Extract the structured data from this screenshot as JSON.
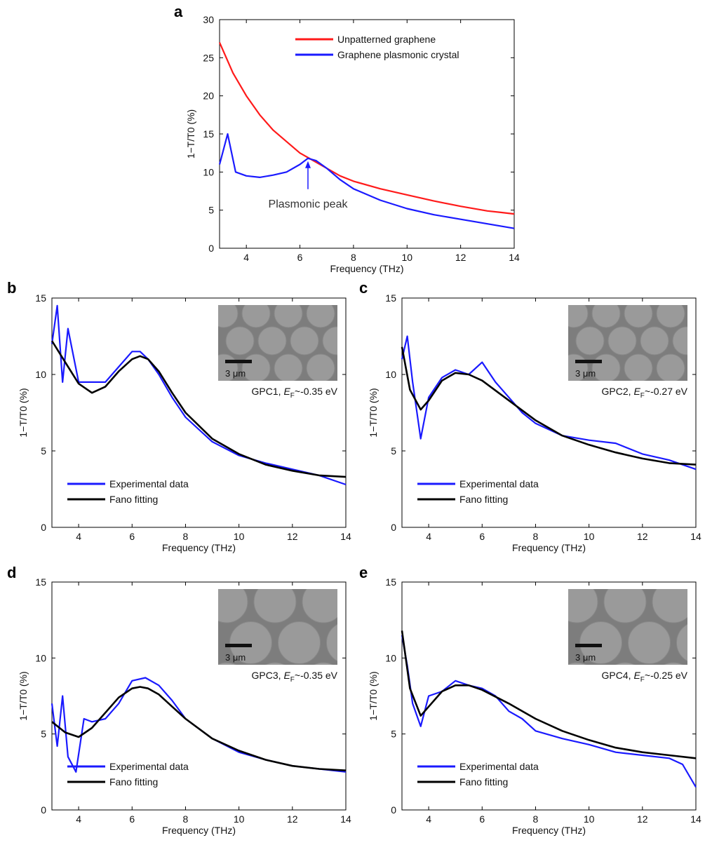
{
  "colors": {
    "red": "#ff1a1a",
    "blue": "#1a1aff",
    "black": "#000000"
  },
  "chart_data": [
    {
      "panel": "a",
      "type": "line",
      "xlabel": "Frequency (THz)",
      "ylabel": "1−T/T0 (%)",
      "xlim": [
        3,
        14
      ],
      "ylim": [
        0,
        30
      ],
      "xticks": [
        "4",
        "6",
        "8",
        "10",
        "12",
        "14"
      ],
      "yticks": [
        "0",
        "5",
        "10",
        "15",
        "20",
        "25",
        "30"
      ],
      "legend_position": "top-right",
      "annotation": {
        "text": "Plasmonic peak",
        "x": 6.3,
        "y": 11.8
      },
      "series": [
        {
          "name": "Unpatterned graphene",
          "color": "red",
          "x": [
            3.0,
            3.5,
            4.0,
            4.5,
            5.0,
            5.5,
            6.0,
            6.5,
            7.0,
            7.5,
            8.0,
            9.0,
            10.0,
            11.0,
            12.0,
            13.0,
            13.5,
            14.0
          ],
          "y": [
            27,
            23,
            20,
            17.5,
            15.5,
            14,
            12.5,
            11.5,
            10.5,
            9.5,
            8.8,
            7.8,
            7.0,
            6.2,
            5.5,
            4.9,
            4.7,
            4.5
          ]
        },
        {
          "name": "Graphene plasmonic crystal",
          "color": "blue",
          "x": [
            3.0,
            3.3,
            3.6,
            4.0,
            4.5,
            5.0,
            5.5,
            6.0,
            6.3,
            6.6,
            7.0,
            7.5,
            8.0,
            9.0,
            10.0,
            11.0,
            12.0,
            13.0,
            14.0
          ],
          "y": [
            11,
            15,
            10,
            9.5,
            9.3,
            9.6,
            10,
            11,
            11.8,
            11.5,
            10.5,
            9.0,
            7.8,
            6.3,
            5.2,
            4.4,
            3.8,
            3.2,
            2.6
          ]
        }
      ]
    },
    {
      "panel": "b",
      "type": "line",
      "xlabel": "Frequency (THz)",
      "ylabel": "1−T/T0 (%)",
      "xlim": [
        3,
        14
      ],
      "ylim": [
        0,
        15
      ],
      "xticks": [
        "4",
        "6",
        "8",
        "10",
        "12",
        "14"
      ],
      "yticks": [
        "0",
        "5",
        "10",
        "15"
      ],
      "legend_position": "bottom-left",
      "inset": {
        "sample": "GPC1",
        "ef": "~-0.35 eV",
        "scale": "3 μm"
      },
      "series": [
        {
          "name": "Experimental data",
          "color": "blue",
          "x": [
            3.0,
            3.2,
            3.4,
            3.6,
            4.0,
            4.5,
            5.0,
            5.5,
            6.0,
            6.3,
            6.6,
            7.0,
            7.5,
            8.0,
            9.0,
            10.0,
            11.0,
            12.0,
            13.0,
            14.0
          ],
          "y": [
            12,
            14.5,
            9.5,
            13,
            9.5,
            9.5,
            9.5,
            10.5,
            11.5,
            11.5,
            11,
            10,
            8.5,
            7.2,
            5.6,
            4.7,
            4.2,
            3.8,
            3.4,
            2.8
          ]
        },
        {
          "name": "Fano fitting",
          "color": "black",
          "x": [
            3.0,
            3.5,
            4.0,
            4.5,
            5.0,
            5.5,
            6.0,
            6.3,
            6.6,
            7.0,
            7.5,
            8.0,
            9.0,
            10.0,
            11.0,
            12.0,
            13.0,
            14.0
          ],
          "y": [
            12.2,
            10.8,
            9.4,
            8.8,
            9.2,
            10.2,
            11.0,
            11.2,
            11.0,
            10.2,
            8.8,
            7.5,
            5.8,
            4.8,
            4.1,
            3.7,
            3.4,
            3.3
          ]
        }
      ]
    },
    {
      "panel": "c",
      "type": "line",
      "xlabel": "Frequency (THz)",
      "ylabel": "1−T/T0 (%)",
      "xlim": [
        3,
        14
      ],
      "ylim": [
        0,
        15
      ],
      "xticks": [
        "4",
        "6",
        "8",
        "10",
        "12",
        "14"
      ],
      "yticks": [
        "0",
        "5",
        "10",
        "15"
      ],
      "legend_position": "bottom-left",
      "inset": {
        "sample": "GPC2",
        "ef": "~-0.27 eV",
        "scale": "3 μm"
      },
      "series": [
        {
          "name": "Experimental data",
          "color": "blue",
          "x": [
            3.0,
            3.2,
            3.4,
            3.7,
            4.0,
            4.5,
            5.0,
            5.5,
            6.0,
            6.5,
            7.0,
            7.5,
            8.0,
            9.0,
            10.0,
            11.0,
            12.0,
            13.0,
            14.0
          ],
          "y": [
            11,
            12.5,
            9.5,
            5.8,
            8.5,
            9.8,
            10.3,
            10.0,
            10.8,
            9.5,
            8.5,
            7.5,
            6.8,
            6.0,
            5.7,
            5.5,
            4.8,
            4.4,
            3.8
          ]
        },
        {
          "name": "Fano fitting",
          "color": "black",
          "x": [
            3.0,
            3.3,
            3.7,
            4.0,
            4.5,
            5.0,
            5.5,
            6.0,
            7.0,
            8.0,
            9.0,
            10.0,
            11.0,
            12.0,
            13.0,
            14.0
          ],
          "y": [
            11.8,
            9.0,
            7.7,
            8.3,
            9.6,
            10.1,
            10.0,
            9.6,
            8.3,
            7.0,
            6.0,
            5.4,
            4.9,
            4.5,
            4.2,
            4.1
          ]
        }
      ]
    },
    {
      "panel": "d",
      "type": "line",
      "xlabel": "Frequency (THz)",
      "ylabel": "1−T/T0 (%)",
      "xlim": [
        3,
        14
      ],
      "ylim": [
        0,
        15
      ],
      "xticks": [
        "4",
        "6",
        "8",
        "10",
        "12",
        "14"
      ],
      "yticks": [
        "0",
        "5",
        "10",
        "15"
      ],
      "legend_position": "bottom-left",
      "inset": {
        "sample": "GPC3",
        "ef": "~-0.35 eV",
        "scale": "3 μm"
      },
      "series": [
        {
          "name": "Experimental data",
          "color": "blue",
          "x": [
            3.0,
            3.2,
            3.4,
            3.6,
            3.9,
            4.2,
            4.5,
            5.0,
            5.5,
            6.0,
            6.5,
            7.0,
            7.5,
            8.0,
            9.0,
            10.0,
            11.0,
            12.0,
            13.0,
            14.0
          ],
          "y": [
            7.0,
            4.2,
            7.5,
            3.5,
            2.5,
            6.0,
            5.8,
            6.0,
            7.0,
            8.5,
            8.7,
            8.2,
            7.2,
            6.0,
            4.7,
            3.8,
            3.3,
            2.9,
            2.7,
            2.5
          ]
        },
        {
          "name": "Fano fitting",
          "color": "black",
          "x": [
            3.0,
            3.5,
            4.0,
            4.5,
            5.0,
            5.5,
            6.0,
            6.3,
            6.6,
            7.0,
            7.5,
            8.0,
            9.0,
            10.0,
            11.0,
            12.0,
            13.0,
            14.0
          ],
          "y": [
            5.8,
            5.1,
            4.8,
            5.4,
            6.4,
            7.4,
            8.0,
            8.1,
            8.0,
            7.6,
            6.8,
            6.0,
            4.7,
            3.9,
            3.3,
            2.9,
            2.7,
            2.6
          ]
        }
      ]
    },
    {
      "panel": "e",
      "type": "line",
      "xlabel": "Frequency (THz)",
      "ylabel": "1−T/T0 (%)",
      "xlim": [
        3,
        14
      ],
      "ylim": [
        0,
        15
      ],
      "xticks": [
        "4",
        "6",
        "8",
        "10",
        "12",
        "14"
      ],
      "yticks": [
        "0",
        "5",
        "10",
        "15"
      ],
      "legend_position": "bottom-left",
      "inset": {
        "sample": "GPC4",
        "ef": "~-0.25 eV",
        "scale": "3 μm"
      },
      "series": [
        {
          "name": "Experimental data",
          "color": "blue",
          "x": [
            3.0,
            3.2,
            3.4,
            3.7,
            4.0,
            4.5,
            5.0,
            5.5,
            6.0,
            6.5,
            7.0,
            7.5,
            8.0,
            9.0,
            10.0,
            11.0,
            12.0,
            13.0,
            13.5,
            14.0
          ],
          "y": [
            11.5,
            9.5,
            7.0,
            5.5,
            7.5,
            7.8,
            8.5,
            8.2,
            8.0,
            7.5,
            6.5,
            6.0,
            5.2,
            4.7,
            4.3,
            3.8,
            3.6,
            3.4,
            3.0,
            1.5
          ]
        },
        {
          "name": "Fano fitting",
          "color": "black",
          "x": [
            3.0,
            3.3,
            3.7,
            4.0,
            4.5,
            5.0,
            5.5,
            6.0,
            7.0,
            8.0,
            9.0,
            10.0,
            11.0,
            12.0,
            13.0,
            14.0
          ],
          "y": [
            11.8,
            8.0,
            6.2,
            6.8,
            7.8,
            8.2,
            8.2,
            7.9,
            7.0,
            6.0,
            5.2,
            4.6,
            4.1,
            3.8,
            3.6,
            3.4
          ]
        }
      ]
    }
  ]
}
